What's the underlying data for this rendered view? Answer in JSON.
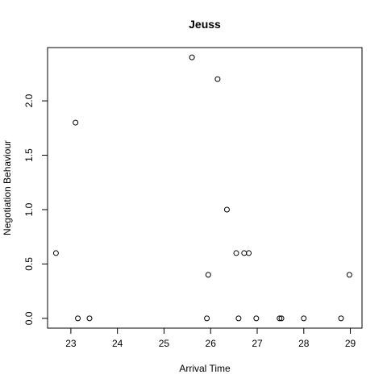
{
  "chart_data": {
    "type": "scatter",
    "title": "Jeuss",
    "xlabel": "Arrival Time",
    "ylabel": "Negotiation Behaviour",
    "xlim": [
      22.5,
      29.25
    ],
    "ylim": [
      -0.09,
      2.49
    ],
    "xticks": [
      "23",
      "24",
      "25",
      "26",
      "27",
      "28",
      "29"
    ],
    "yticks": [
      "0.0",
      "0.5",
      "1.0",
      "1.5",
      "2.0"
    ],
    "grid": false,
    "points": [
      {
        "x": 22.68,
        "y": 0.6
      },
      {
        "x": 23.1,
        "y": 1.8
      },
      {
        "x": 23.15,
        "y": 0.0
      },
      {
        "x": 23.4,
        "y": 0.0
      },
      {
        "x": 25.6,
        "y": 2.4
      },
      {
        "x": 25.92,
        "y": 0.0
      },
      {
        "x": 25.95,
        "y": 0.4
      },
      {
        "x": 26.15,
        "y": 2.2
      },
      {
        "x": 26.35,
        "y": 1.0
      },
      {
        "x": 26.55,
        "y": 0.6
      },
      {
        "x": 26.6,
        "y": 0.0
      },
      {
        "x": 26.72,
        "y": 0.6
      },
      {
        "x": 26.82,
        "y": 0.6
      },
      {
        "x": 26.98,
        "y": 0.0
      },
      {
        "x": 27.48,
        "y": 0.0
      },
      {
        "x": 27.52,
        "y": 0.0
      },
      {
        "x": 28.0,
        "y": 0.0
      },
      {
        "x": 28.8,
        "y": 0.0
      },
      {
        "x": 28.98,
        "y": 0.4
      }
    ]
  }
}
